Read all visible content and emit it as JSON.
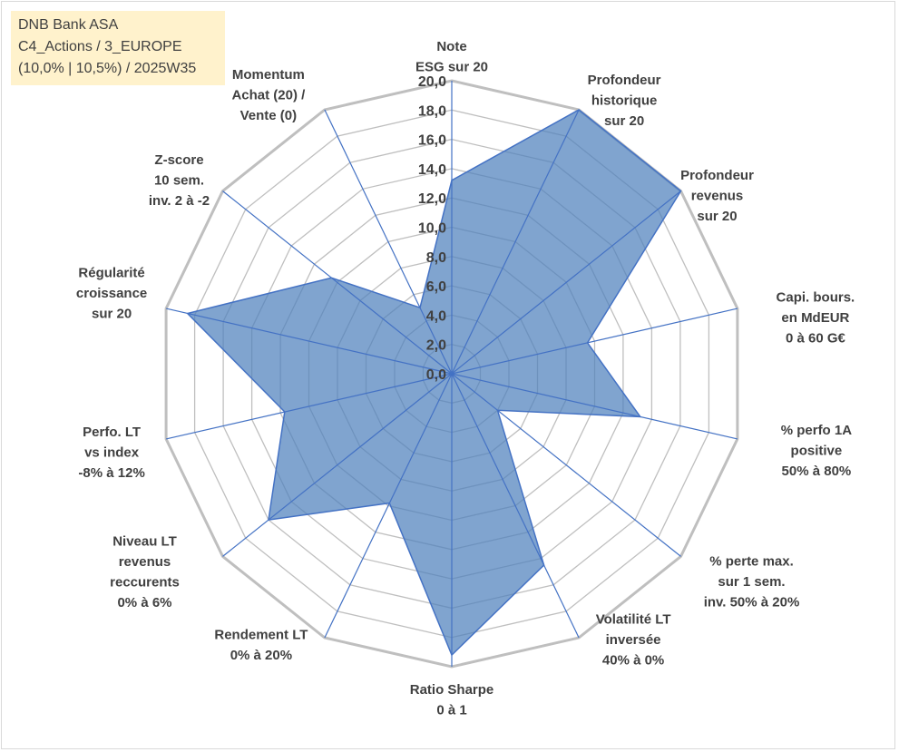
{
  "title_box": {
    "line1": "DNB Bank ASA",
    "line2": "C4_Actions / 3_EUROPE",
    "line3": "(10,0% | 10,5%) / 2025W35"
  },
  "chart_data": {
    "type": "radar",
    "rmin": 0,
    "rmax": 20,
    "ticks": [
      "0,0",
      "2,0",
      "4,0",
      "6,0",
      "8,0",
      "10,0",
      "12,0",
      "14,0",
      "16,0",
      "18,0",
      "20,0"
    ],
    "categories": [
      [
        "Note",
        "ESG sur 20"
      ],
      [
        "Profondeur",
        "historique",
        "sur 20"
      ],
      [
        "Profondeur",
        "revenus",
        "sur 20"
      ],
      [
        "Capi. bours.",
        "en MdEUR",
        "0 à 60 G€"
      ],
      [
        "% perfo 1A",
        "positive",
        "50% à 80%"
      ],
      [
        "% perte max.",
        "sur 1 sem.",
        "inv. 50% à 20%"
      ],
      [
        "Volatilité LT",
        "inversée",
        "40% à 0%"
      ],
      [
        "Ratio Sharpe",
        "0 à 1"
      ],
      [
        "Rendement LT",
        "0% à 20%"
      ],
      [
        "Niveau LT",
        "revenus",
        "reccurents",
        "0% à 6%"
      ],
      [
        "Perfo. LT",
        "vs index",
        "-8% à 12%"
      ],
      [
        "Régularité",
        "croissance",
        "sur 20"
      ],
      [
        "Z-score",
        "10 sem.",
        "inv. 2 à -2"
      ],
      [
        "Momentum",
        "Achat (20) /",
        "Vente (0)"
      ]
    ],
    "series": [
      {
        "values": [
          13.2,
          20,
          20,
          9.5,
          13.2,
          4.0,
          14.5,
          19.2,
          9.8,
          16.0,
          11.7,
          18.5,
          10.5,
          5.0
        ]
      }
    ],
    "colors": {
      "fill": "#4f81bd",
      "fill_opacity": 0.72,
      "stroke": "#4472c4",
      "grid": "#bfbfbf",
      "axis": "#4472c4",
      "text": "#404040",
      "title_bg": "#fff2cc"
    },
    "legend": "none",
    "grid": true
  }
}
